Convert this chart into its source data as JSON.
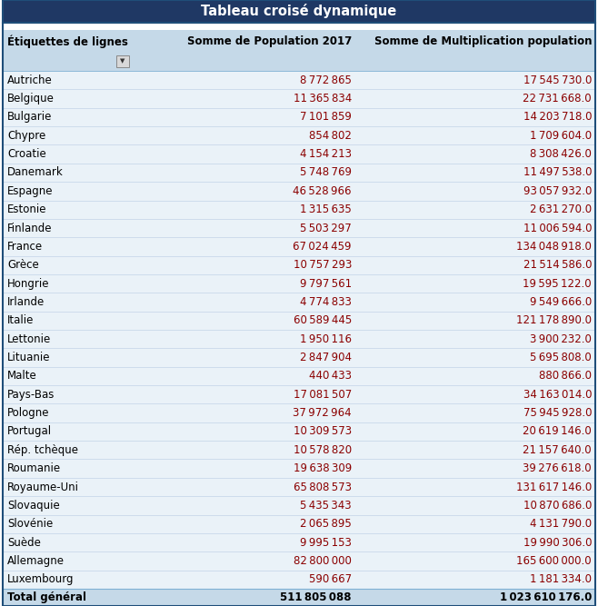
{
  "title": "Tableau croisé dynamique",
  "title_bg": "#1F3864",
  "title_color": "#FFFFFF",
  "header_col1": "Étiquettes de lignes",
  "header_col2": "Somme de Population 2017",
  "header_col3": "Somme de Multiplication population",
  "header_bg": "#C5D9E8",
  "body_bg": "#EAF2F8",
  "header_color": "#000000",
  "rows": [
    [
      "Autriche",
      8772865,
      17545730.0
    ],
    [
      "Belgique",
      11365834,
      22731668.0
    ],
    [
      "Bulgarie",
      7101859,
      14203718.0
    ],
    [
      "Chypre",
      854802,
      1709604.0
    ],
    [
      "Croatie",
      4154213,
      8308426.0
    ],
    [
      "Danemark",
      5748769,
      11497538.0
    ],
    [
      "Espagne",
      46528966,
      93057932.0
    ],
    [
      "Estonie",
      1315635,
      2631270.0
    ],
    [
      "Finlande",
      5503297,
      11006594.0
    ],
    [
      "France",
      67024459,
      134048918.0
    ],
    [
      "Grèce",
      10757293,
      21514586.0
    ],
    [
      "Hongrie",
      9797561,
      19595122.0
    ],
    [
      "Irlande",
      4774833,
      9549666.0
    ],
    [
      "Italie",
      60589445,
      121178890.0
    ],
    [
      "Lettonie",
      1950116,
      3900232.0
    ],
    [
      "Lituanie",
      2847904,
      5695808.0
    ],
    [
      "Malte",
      440433,
      880866.0
    ],
    [
      "Pays-Bas",
      17081507,
      34163014.0
    ],
    [
      "Pologne",
      37972964,
      75945928.0
    ],
    [
      "Portugal",
      10309573,
      20619146.0
    ],
    [
      "Rép. tchèque",
      10578820,
      21157640.0
    ],
    [
      "Roumanie",
      19638309,
      39276618.0
    ],
    [
      "Royaume-Uni",
      65808573,
      131617146.0
    ],
    [
      "Slovaquie",
      5435343,
      10870686.0
    ],
    [
      "Slovénie",
      2065895,
      4131790.0
    ],
    [
      "Suède",
      9995153,
      19990306.0
    ],
    [
      "Allemagne",
      82800000,
      165600000.0
    ],
    [
      "Luxembourg",
      590667,
      1181334.0
    ]
  ],
  "total_label": "Total général",
  "total_pop": 511805088,
  "total_mult": 1023610176.0,
  "total_bg": "#C5D9E8",
  "border_color": "#1F4E79",
  "outer_border_color": "#2E6090",
  "text_color": "#000000",
  "data_color": "#8B0000",
  "font_size": 8.5,
  "header_font_size": 8.5,
  "title_font_size": 10.5,
  "fig_width": 6.58,
  "fig_height": 6.67,
  "dpi": 100
}
